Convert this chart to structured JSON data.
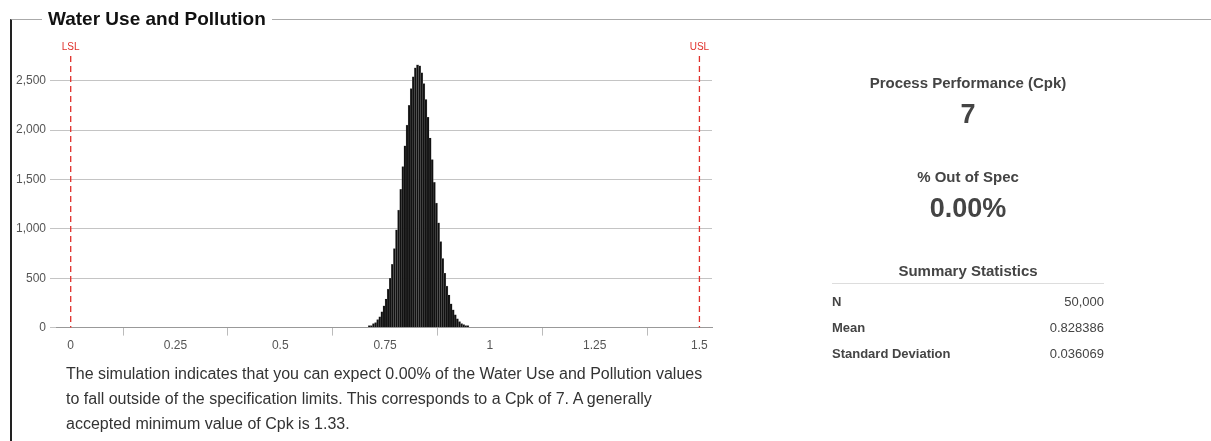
{
  "chart_data": [
    {
      "type": "histogram",
      "title": "Water Use and Pollution",
      "bins": [
        0.71,
        0.715,
        0.72,
        0.725,
        0.73,
        0.735,
        0.74,
        0.745,
        0.75,
        0.755,
        0.76,
        0.765,
        0.77,
        0.775,
        0.78,
        0.785,
        0.79,
        0.795,
        0.8,
        0.805,
        0.81,
        0.815,
        0.82,
        0.825,
        0.83,
        0.835,
        0.84,
        0.845,
        0.85,
        0.855,
        0.86,
        0.865,
        0.87,
        0.875,
        0.88,
        0.885,
        0.89,
        0.895,
        0.9,
        0.905,
        0.91,
        0.915,
        0.92,
        0.925,
        0.93,
        0.935,
        0.94,
        0.945,
        0.95
      ],
      "values": [
        20,
        20,
        40,
        50,
        80,
        110,
        160,
        220,
        290,
        390,
        500,
        640,
        800,
        990,
        1190,
        1400,
        1630,
        1840,
        2050,
        2250,
        2420,
        2540,
        2630,
        2660,
        2650,
        2580,
        2470,
        2310,
        2130,
        1920,
        1700,
        1470,
        1260,
        1060,
        870,
        700,
        550,
        420,
        330,
        240,
        180,
        130,
        90,
        60,
        40,
        30,
        20,
        20
      ],
      "color": "#111111",
      "xlim": [
        -0.035,
        1.53
      ],
      "xticks": [
        0,
        0.25,
        0.5,
        0.75,
        1,
        1.25,
        1.5
      ],
      "ylim": [
        0,
        2750
      ],
      "yticks": [
        0,
        500,
        {
          "value": 1000,
          "label": "1,000"
        },
        {
          "value": 1500,
          "label": "1,500"
        },
        {
          "value": 2000,
          "label": "2,000"
        },
        {
          "value": 2500,
          "label": "2,500"
        }
      ],
      "grid": "y",
      "ref_lines": [
        {
          "axis": "x",
          "value": 0,
          "label": "LSL",
          "color": "#e0302a",
          "line_style": "dashed"
        },
        {
          "axis": "x",
          "value": 1.5,
          "label": "USL",
          "color": "#e0302a",
          "line_style": "dashed"
        }
      ],
      "annotations": [
        "The simulation indicates that you can expect 0.00% of the Water Use and Pollution values to fall outside of the specification limits. This corresponds to a Cpk of 7. A generally accepted minimum value of Cpk is 1.33."
      ]
    },
    {
      "type": "other",
      "annotations": [
        "Process Performance (Cpk)",
        "7",
        "% Out of Spec",
        "0.00%",
        "Summary Statistics",
        "N",
        "50,000",
        "Mean",
        "0.828386",
        "Standard Deviation",
        "0.036069"
      ]
    }
  ]
}
